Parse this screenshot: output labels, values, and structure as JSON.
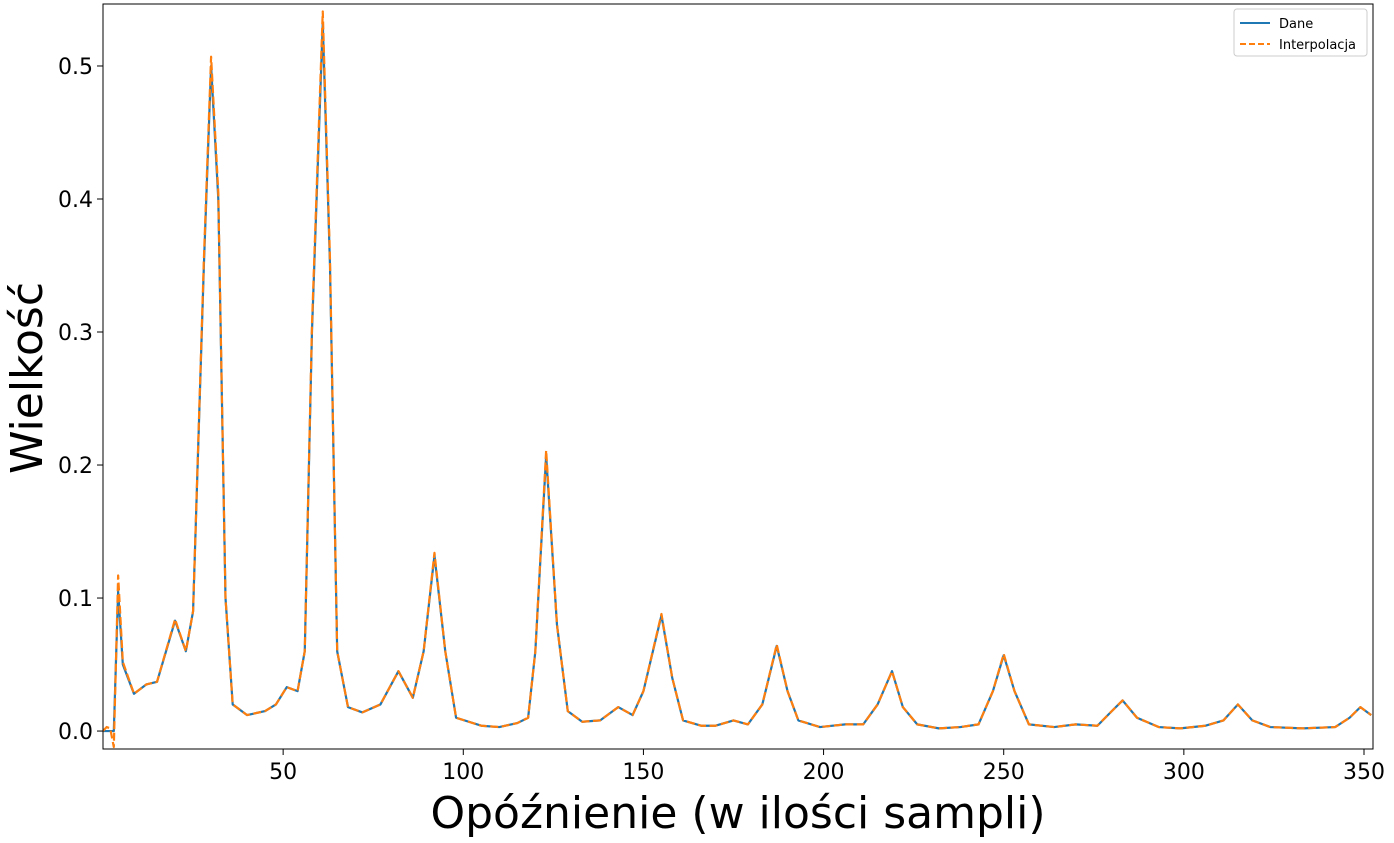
{
  "chart_data": {
    "type": "line",
    "xlabel": "Opóźnienie (w ilości sampli)",
    "ylabel": "Wielkość",
    "x": [
      0,
      1,
      2,
      3,
      4.2,
      5.5,
      8.6,
      12,
      15,
      20,
      23,
      25,
      28,
      30,
      32,
      34,
      36,
      40,
      45,
      48,
      51,
      54,
      56,
      58,
      61,
      63,
      65,
      68,
      72,
      77,
      82,
      86,
      89,
      92,
      95,
      98,
      105,
      110,
      115,
      118,
      120,
      123,
      126,
      129,
      133,
      138,
      143,
      147,
      150,
      155,
      158,
      161,
      166,
      170,
      175,
      179,
      183,
      187,
      190,
      193,
      199,
      206,
      211,
      215,
      219,
      222,
      226,
      232,
      238,
      243,
      247,
      250,
      253,
      257,
      264,
      270,
      276,
      280,
      283,
      287,
      293,
      299,
      306,
      311,
      315,
      319,
      324,
      333,
      342,
      346,
      349,
      352
    ],
    "series": [
      {
        "name": "Dane",
        "color": "#1f77b4",
        "dashed": false,
        "values": [
          0,
          0,
          0,
          0,
          0.105,
          0.05,
          0.028,
          0.035,
          0.037,
          0.083,
          0.06,
          0.09,
          0.35,
          0.5,
          0.4,
          0.1,
          0.02,
          0.012,
          0.015,
          0.02,
          0.033,
          0.03,
          0.06,
          0.3,
          0.532,
          0.35,
          0.06,
          0.018,
          0.014,
          0.02,
          0.045,
          0.025,
          0.06,
          0.132,
          0.06,
          0.01,
          0.004,
          0.003,
          0.006,
          0.01,
          0.06,
          0.207,
          0.08,
          0.015,
          0.007,
          0.008,
          0.018,
          0.012,
          0.03,
          0.087,
          0.04,
          0.008,
          0.004,
          0.004,
          0.008,
          0.005,
          0.02,
          0.064,
          0.03,
          0.008,
          0.003,
          0.005,
          0.005,
          0.02,
          0.045,
          0.018,
          0.005,
          0.002,
          0.003,
          0.005,
          0.03,
          0.057,
          0.03,
          0.005,
          0.003,
          0.005,
          0.004,
          0.015,
          0.023,
          0.01,
          0.003,
          0.002,
          0.004,
          0.008,
          0.02,
          0.008,
          0.003,
          0.002,
          0.003,
          0.01,
          0.018,
          0.012
        ]
      },
      {
        "name": "Interpolacja",
        "color": "#ff7f0e",
        "dashed": true,
        "values": [
          0,
          0.003,
          0.002,
          -0.012,
          0.117,
          0.052,
          0.028,
          0.035,
          0.037,
          0.084,
          0.06,
          0.09,
          0.355,
          0.507,
          0.405,
          0.1,
          0.02,
          0.012,
          0.015,
          0.02,
          0.033,
          0.03,
          0.06,
          0.305,
          0.541,
          0.355,
          0.06,
          0.018,
          0.014,
          0.02,
          0.045,
          0.025,
          0.06,
          0.134,
          0.06,
          0.01,
          0.004,
          0.003,
          0.006,
          0.01,
          0.06,
          0.211,
          0.08,
          0.015,
          0.007,
          0.008,
          0.018,
          0.012,
          0.03,
          0.088,
          0.04,
          0.008,
          0.004,
          0.004,
          0.008,
          0.005,
          0.02,
          0.065,
          0.03,
          0.008,
          0.003,
          0.005,
          0.005,
          0.02,
          0.045,
          0.018,
          0.005,
          0.002,
          0.003,
          0.005,
          0.03,
          0.058,
          0.03,
          0.005,
          0.003,
          0.005,
          0.004,
          0.015,
          0.023,
          0.01,
          0.003,
          0.002,
          0.004,
          0.008,
          0.02,
          0.008,
          0.003,
          0.002,
          0.003,
          0.01,
          0.018,
          0.012
        ]
      }
    ],
    "xlim": [
      0,
      352.5
    ],
    "ylim": [
      -0.0135,
      0.5466
    ],
    "xticks": [
      50,
      100,
      150,
      200,
      250,
      300,
      350
    ],
    "yticks": [
      {
        "value": 0,
        "label": "0.0"
      },
      0.1,
      0.2,
      0.3,
      0.4,
      0.5
    ],
    "legend": "upper right"
  }
}
